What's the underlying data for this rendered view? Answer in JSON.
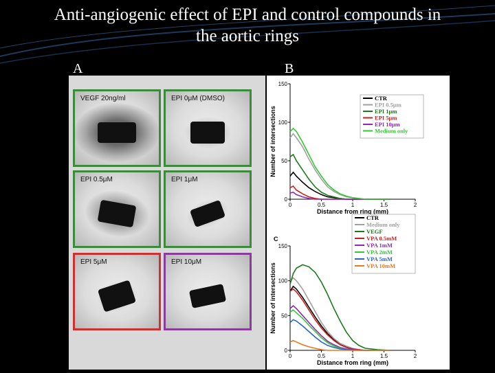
{
  "slide": {
    "title_line1": "Anti-angiogenic effect of EPI and control compounds in",
    "title_line2": "the aortic rings",
    "label_a": "A",
    "label_b": "B",
    "label_c": "C"
  },
  "wells": [
    {
      "label": "VEGF 20ng/ml",
      "border": "#3c8a3c"
    },
    {
      "label": "EPI 0μM (DMSO)",
      "border": "#3c8a3c"
    },
    {
      "label": "EPI 0.5μM",
      "border": "#3c8a3c"
    },
    {
      "label": "EPI 1μM",
      "border": "#3c8a3c"
    },
    {
      "label": "EPI 5μM",
      "border": "#c83232"
    },
    {
      "label": "EPI 10μM",
      "border": "#8a3c9a"
    }
  ],
  "chart_data": [
    {
      "type": "line",
      "xlabel": "Distance from ring (mm)",
      "ylabel": "Number of intersections",
      "xlim": [
        0,
        2
      ],
      "ylim": [
        0,
        150
      ],
      "xticks": [
        "0",
        "0.5",
        "1",
        "1.5",
        "2"
      ],
      "yticks": [
        "0",
        "50",
        "100",
        "150"
      ],
      "legend_position": "top-right",
      "x": [
        0,
        0.05,
        0.1,
        0.2,
        0.3,
        0.4,
        0.5,
        0.6,
        0.7,
        0.8,
        0.9,
        1.0,
        1.1,
        1.2,
        1.4,
        1.6
      ],
      "series": [
        {
          "name": "CTR",
          "color": "#000000",
          "values": [
            30,
            35,
            30,
            22,
            15,
            10,
            6,
            3,
            2,
            1,
            0,
            0,
            0,
            0,
            0,
            0
          ]
        },
        {
          "name": "EPI 0.5μm",
          "color": "#a0a0a0",
          "values": [
            80,
            85,
            80,
            68,
            52,
            38,
            26,
            16,
            10,
            6,
            3,
            2,
            1,
            0,
            0,
            0
          ]
        },
        {
          "name": "EPI 1μm",
          "color": "#1a7a1a",
          "values": [
            55,
            58,
            50,
            38,
            26,
            16,
            9,
            5,
            3,
            1,
            0,
            0,
            0,
            0,
            0,
            0
          ]
        },
        {
          "name": "EPI 5μm",
          "color": "#c81e1e",
          "values": [
            15,
            17,
            12,
            7,
            3,
            1,
            0,
            0,
            0,
            0,
            0,
            0,
            0,
            0,
            0,
            0
          ]
        },
        {
          "name": "EPI 10μm",
          "color": "#8c28b4",
          "values": [
            8,
            9,
            6,
            3,
            1,
            0,
            0,
            0,
            0,
            0,
            0,
            0,
            0,
            0,
            0,
            0
          ]
        },
        {
          "name": "Medium only",
          "color": "#32c832",
          "values": [
            88,
            92,
            88,
            74,
            58,
            42,
            30,
            19,
            12,
            7,
            4,
            2,
            1,
            0,
            0,
            0
          ]
        }
      ]
    },
    {
      "type": "line",
      "xlabel": "Distance from ring (mm)",
      "ylabel": "Number of intersections",
      "xlim": [
        0,
        2
      ],
      "ylim": [
        0,
        150
      ],
      "xticks": [
        "0",
        "0.5",
        "1",
        "1.5",
        "2"
      ],
      "yticks": [
        "0",
        "50",
        "100",
        "150"
      ],
      "legend_position": "top-right",
      "x": [
        0,
        0.05,
        0.1,
        0.2,
        0.3,
        0.4,
        0.5,
        0.6,
        0.7,
        0.8,
        0.9,
        1.0,
        1.1,
        1.2,
        1.4,
        1.6
      ],
      "series": [
        {
          "name": "CTR",
          "color": "#000000",
          "values": [
            85,
            92,
            88,
            76,
            62,
            48,
            35,
            24,
            15,
            9,
            5,
            2,
            1,
            0,
            0,
            0
          ]
        },
        {
          "name": "Medium only",
          "color": "#a0a0a0",
          "values": [
            100,
            104,
            100,
            88,
            72,
            56,
            40,
            27,
            17,
            10,
            6,
            3,
            1,
            0,
            0,
            0
          ]
        },
        {
          "name": "VEGF",
          "color": "#1a7a1a",
          "values": [
            95,
            110,
            118,
            123,
            120,
            112,
            98,
            80,
            60,
            42,
            26,
            14,
            7,
            3,
            1,
            0
          ]
        },
        {
          "name": "VPA 0.5mM",
          "color": "#c81e1e",
          "values": [
            85,
            88,
            84,
            72,
            58,
            44,
            32,
            22,
            14,
            8,
            4,
            2,
            1,
            0,
            0,
            0
          ]
        },
        {
          "name": "VPA 1mM",
          "color": "#8c28b4",
          "values": [
            60,
            64,
            60,
            50,
            40,
            30,
            21,
            13,
            8,
            4,
            2,
            1,
            0,
            0,
            0,
            0
          ]
        },
        {
          "name": "VPA 2mM",
          "color": "#32c832",
          "values": [
            55,
            58,
            54,
            46,
            36,
            27,
            18,
            11,
            6,
            3,
            1,
            0,
            0,
            0,
            0,
            0
          ]
        },
        {
          "name": "VPA 5mM",
          "color": "#2864c8",
          "values": [
            40,
            44,
            42,
            35,
            27,
            19,
            12,
            7,
            4,
            2,
            1,
            0,
            0,
            0,
            0,
            0
          ]
        },
        {
          "name": "VPA 10mM",
          "color": "#e6781e",
          "values": [
            12,
            14,
            12,
            8,
            5,
            3,
            1,
            0,
            0,
            0,
            0,
            0,
            0,
            0,
            0,
            0
          ]
        }
      ]
    }
  ]
}
